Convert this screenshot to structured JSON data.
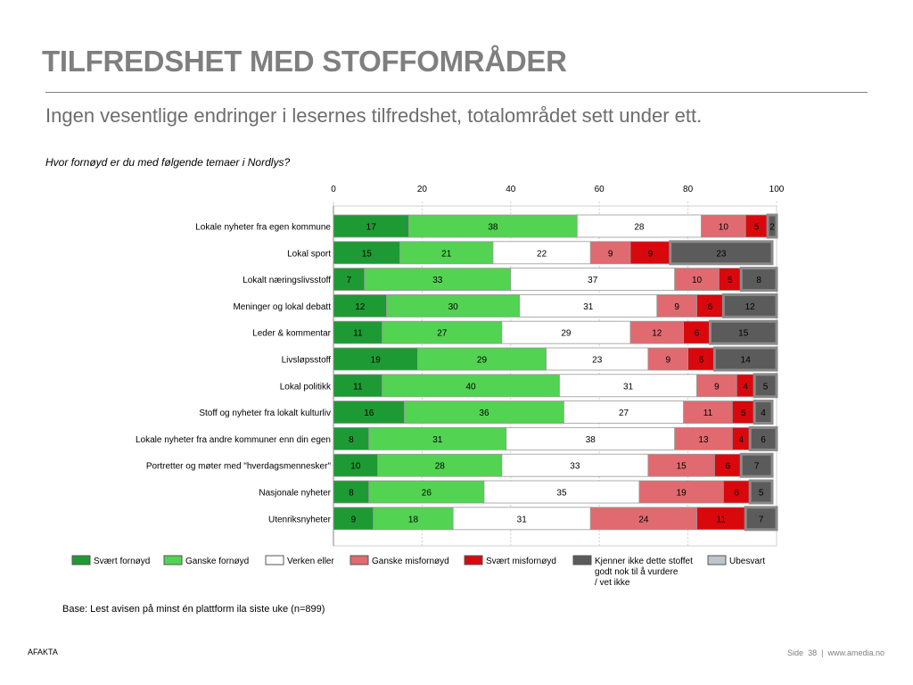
{
  "title": "TILFREDSHET MED STOFFOMRÅDER",
  "subtitle": "Ingen vesentlige endringer i lesernes tilfredshet, totalområdet sett under ett.",
  "question": "Hvor fornøyd er du med følgende temaer i Nordlys?",
  "base_note": "Base: Lest avisen på minst én plattform ila siste uke (n=899)",
  "footer": {
    "left": "AFAKTA",
    "page_label": "Side",
    "page_number": "38",
    "separator": "|",
    "url": "www.amedia.no"
  },
  "chart_data": {
    "type": "bar",
    "orientation": "horizontal",
    "stacked": true,
    "xlim": [
      0,
      100
    ],
    "xticks": [
      0,
      20,
      40,
      60,
      80,
      100
    ],
    "grid": true,
    "legend_position": "bottom",
    "categories": [
      "Lokale nyheter fra egen kommune",
      "Lokal sport",
      "Lokalt næringslivsstoff",
      "Meninger og lokal debatt",
      "Leder & kommentar",
      "Livsløpsstoff",
      "Lokal politikk",
      "Stoff og nyheter fra lokalt kulturliv",
      "Lokale nyheter fra andre kommuner enn din egen",
      "Portretter og møter med \"hverdagsmennesker\"",
      "Nasjonale nyheter",
      "Utenriksnyheter"
    ],
    "series": [
      {
        "name": "Svært fornøyd",
        "color": "#1e9a34",
        "values": [
          17,
          15,
          7,
          12,
          11,
          19,
          11,
          16,
          8,
          10,
          8,
          9
        ]
      },
      {
        "name": "Ganske fornøyd",
        "color": "#52d352",
        "values": [
          38,
          21,
          33,
          30,
          27,
          29,
          40,
          36,
          31,
          28,
          26,
          18
        ]
      },
      {
        "name": "Verken eller",
        "color": "#ffffff",
        "values": [
          28,
          22,
          37,
          31,
          29,
          23,
          31,
          27,
          38,
          33,
          35,
          31
        ]
      },
      {
        "name": "Ganske misfornøyd",
        "color": "#e06a6f",
        "values": [
          10,
          9,
          10,
          9,
          12,
          9,
          9,
          11,
          13,
          15,
          19,
          24
        ]
      },
      {
        "name": "Svært misfornøyd",
        "color": "#d9080d",
        "values": [
          5,
          9,
          5,
          6,
          6,
          6,
          4,
          5,
          4,
          6,
          6,
          11
        ]
      },
      {
        "name": "Kjenner ikke dette stoffet godt nok til å vurdere / vet ikke",
        "color": "#5b5b5b",
        "values": [
          2,
          23,
          8,
          12,
          15,
          14,
          5,
          4,
          6,
          7,
          5,
          7
        ]
      },
      {
        "name": "Ubesvart",
        "color": "#bcc6cc",
        "values": [
          0,
          0,
          0,
          0,
          0,
          0,
          0,
          0,
          0,
          0,
          0,
          0
        ]
      }
    ]
  }
}
